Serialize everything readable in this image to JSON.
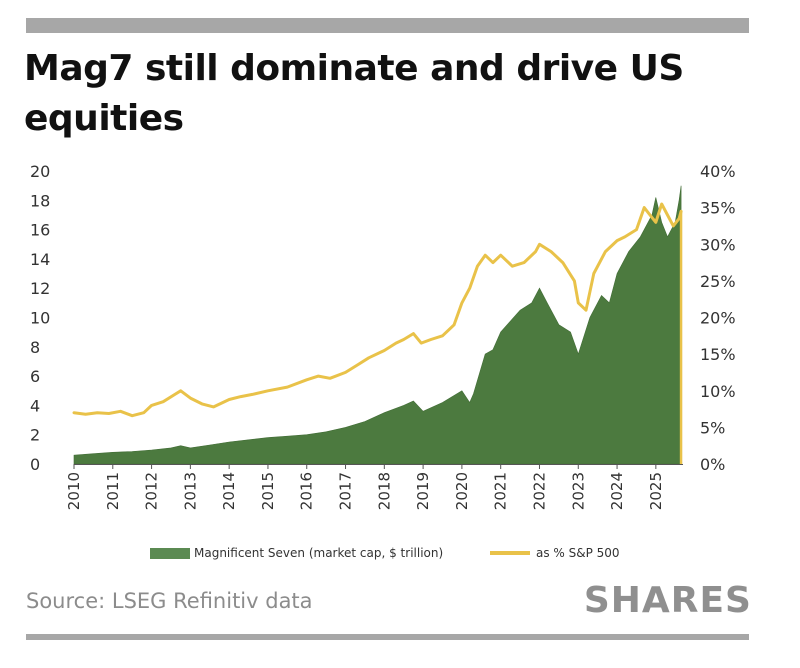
{
  "header": {
    "title": "Mag7 still dominate and drive US equities"
  },
  "footer": {
    "source": "Source: LSEG Refinitiv data",
    "brand": "SHARES"
  },
  "colors": {
    "market_cap_fill": "#4c7a3f",
    "sp_share_line": "#e9c249",
    "rule": "#a7a7a7"
  },
  "chart_data": {
    "type": "area",
    "x_ticks": [
      "2010",
      "2011",
      "2012",
      "2013",
      "2014",
      "2015",
      "2016",
      "2017",
      "2018",
      "2019",
      "2020",
      "2021",
      "2022",
      "2023",
      "2024",
      "2025"
    ],
    "xlim": [
      2010,
      2025.7
    ],
    "y_left_ticks": [
      "0",
      "2",
      "4",
      "6",
      "8",
      "10",
      "12",
      "14",
      "16",
      "18",
      "20"
    ],
    "y_left_lim": [
      0,
      20
    ],
    "y_right_ticks": [
      "0%",
      "5%",
      "10%",
      "15%",
      "20%",
      "25%",
      "30%",
      "35%",
      "40%"
    ],
    "y_right_lim": [
      0,
      40
    ],
    "grid": false,
    "legend_position": "bottom",
    "series": [
      {
        "name": "Magnificent Seven (market cap, $ trillion)",
        "kind": "area",
        "axis": "left",
        "x": [
          2010,
          2010.5,
          2011,
          2011.5,
          2012,
          2012.5,
          2012.75,
          2013,
          2013.5,
          2014,
          2014.5,
          2015,
          2015.5,
          2016,
          2016.5,
          2017,
          2017.5,
          2018,
          2018.5,
          2018.75,
          2019,
          2019.25,
          2019.5,
          2020,
          2020.2,
          2020.3,
          2020.6,
          2020.8,
          2021,
          2021.5,
          2021.8,
          2022,
          2022.2,
          2022.5,
          2022.8,
          2023,
          2023.3,
          2023.6,
          2023.8,
          2024,
          2024.3,
          2024.6,
          2024.9,
          2025,
          2025.15,
          2025.3,
          2025.5,
          2025.6,
          2025.65
        ],
        "values": [
          0.6,
          0.7,
          0.8,
          0.85,
          0.95,
          1.1,
          1.25,
          1.1,
          1.3,
          1.5,
          1.65,
          1.8,
          1.9,
          2.0,
          2.2,
          2.5,
          2.9,
          3.5,
          4.0,
          4.3,
          3.6,
          3.9,
          4.2,
          5.0,
          4.2,
          4.8,
          7.5,
          7.8,
          9.0,
          10.5,
          11.0,
          12.0,
          11.0,
          9.5,
          9.0,
          7.5,
          10.0,
          11.5,
          11.0,
          13.0,
          14.5,
          15.5,
          17.0,
          18.2,
          16.5,
          15.5,
          16.5,
          18.0,
          19.0
        ]
      },
      {
        "name": "as %  S&P 500",
        "kind": "line",
        "axis": "right",
        "x": [
          2010,
          2010.3,
          2010.6,
          2010.9,
          2011.2,
          2011.5,
          2011.8,
          2012,
          2012.3,
          2012.6,
          2012.75,
          2013,
          2013.3,
          2013.6,
          2014,
          2014.3,
          2014.6,
          2015,
          2015.5,
          2016,
          2016.3,
          2016.6,
          2017,
          2017.3,
          2017.6,
          2018,
          2018.3,
          2018.5,
          2018.75,
          2018.95,
          2019.2,
          2019.5,
          2019.8,
          2020,
          2020.2,
          2020.4,
          2020.6,
          2020.8,
          2021,
          2021.3,
          2021.6,
          2021.9,
          2022,
          2022.3,
          2022.6,
          2022.9,
          2023,
          2023.2,
          2023.4,
          2023.7,
          2024,
          2024.2,
          2024.5,
          2024.7,
          2024.85,
          2025,
          2025.15,
          2025.3,
          2025.45,
          2025.6,
          2025.65
        ],
        "values": [
          7.0,
          6.8,
          7.0,
          6.9,
          7.2,
          6.6,
          7.0,
          8.0,
          8.5,
          9.5,
          10.0,
          9.0,
          8.2,
          7.8,
          8.8,
          9.2,
          9.5,
          10.0,
          10.5,
          11.5,
          12.0,
          11.7,
          12.5,
          13.5,
          14.5,
          15.5,
          16.5,
          17.0,
          17.8,
          16.5,
          17.0,
          17.5,
          19.0,
          22.0,
          24.0,
          27.0,
          28.5,
          27.5,
          28.5,
          27.0,
          27.5,
          29.0,
          30.0,
          29.0,
          27.5,
          25.0,
          22.0,
          21.0,
          26.0,
          29.0,
          30.5,
          31.0,
          32.0,
          35.0,
          34.0,
          33.0,
          35.5,
          34.0,
          32.5,
          33.5,
          34.5
        ]
      }
    ]
  }
}
